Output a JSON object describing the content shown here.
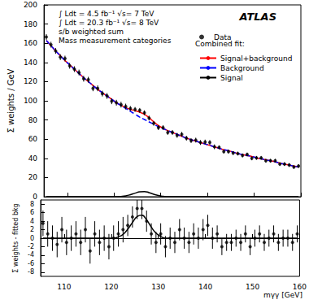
{
  "chart_data": [
    {
      "type": "scatter",
      "title": "ATLAS",
      "annotations": [
        "∫ Ldt = 4.5 fb⁻¹ √s= 7 TeV",
        "∫ Ldt = 20.3 fb⁻¹ √s= 8 TeV",
        "s/b weighted sum",
        "Mass measurement categories"
      ],
      "ylabel": "Σ weights / GeV",
      "legend": "top right",
      "legend_title": "Combined fit:",
      "grid": false,
      "tick_labels": "y",
      "xlim": [
        105,
        160
      ],
      "xticks": [
        110,
        120,
        130,
        140,
        150,
        160
      ],
      "ylim": [
        0,
        200
      ],
      "yticks": [
        0,
        20,
        40,
        60,
        80,
        100,
        120,
        140,
        160,
        180,
        200
      ],
      "x": [
        105.5,
        106.5,
        107.5,
        108.5,
        109.5,
        110.5,
        111.5,
        112.5,
        113.5,
        114.5,
        115.5,
        116.5,
        117.5,
        118.5,
        119.5,
        120.5,
        121.5,
        122.5,
        123.5,
        124.5,
        125.5,
        126.5,
        127.5,
        128.5,
        129.5,
        130.5,
        131.5,
        132.5,
        133.5,
        134.5,
        135.5,
        136.5,
        137.5,
        138.5,
        139.5,
        140.5,
        141.5,
        142.5,
        143.5,
        144.5,
        145.5,
        146.5,
        147.5,
        148.5,
        149.5,
        150.5,
        151.5,
        152.5,
        153.5,
        154.5,
        155.5,
        156.5,
        157.5,
        158.5,
        159.5
      ],
      "series": [
        {
          "name": "Data",
          "type": "scatter",
          "color": "#000000",
          "marker": "circle",
          "values": [
            166.5,
            158.5,
            152,
            145.5,
            144,
            136.5,
            133,
            129.5,
            123,
            122,
            113,
            113,
            107.5,
            105,
            99.5,
            98,
            96,
            94,
            92,
            91,
            90,
            87.5,
            82,
            76.5,
            72,
            72,
            67,
            67,
            64,
            65,
            61,
            58.5,
            59,
            56.5,
            57,
            56.5,
            52,
            51.5,
            47,
            47,
            45.5,
            45,
            43,
            44,
            40,
            40.5,
            40.5,
            37.5,
            37.5,
            37.5,
            34,
            34,
            33,
            31,
            32
          ],
          "errors": [
            3,
            3,
            3,
            3,
            3,
            3,
            3,
            3,
            3,
            3,
            3,
            3,
            3,
            3,
            3,
            3,
            3,
            3,
            2.5,
            2.5,
            2.5,
            2.5,
            2.5,
            2.5,
            2.5,
            2.5,
            2.5,
            2.5,
            2.5,
            2.5,
            2.5,
            2.5,
            2.5,
            2.5,
            2.5,
            2.5,
            2.5,
            2,
            2,
            2,
            2,
            2,
            2,
            2,
            2,
            2,
            2,
            2,
            2,
            2,
            2,
            2,
            2,
            2,
            2
          ]
        },
        {
          "name": "Signal+background",
          "type": "line",
          "color": "#ff0000",
          "line_style": "solid",
          "values": [
            163,
            157.5,
            152,
            147,
            142,
            137.5,
            133,
            128.5,
            124,
            120,
            116,
            112,
            108.5,
            105,
            101.5,
            98,
            95.3,
            92.9,
            91.1,
            89.7,
            88.1,
            85.9,
            82.3,
            78.1,
            74.2,
            71.4,
            69,
            67,
            65,
            63,
            61,
            59.5,
            58,
            56.5,
            55,
            53.5,
            52,
            50.5,
            49,
            48,
            46.5,
            45,
            44,
            43,
            42,
            40.5,
            39.5,
            38.5,
            37.5,
            36.5,
            35,
            34,
            33,
            32,
            31
          ]
        },
        {
          "name": "Background",
          "type": "line",
          "color": "#0000ff",
          "line_style": "dashed",
          "values": [
            163,
            157.5,
            152,
            147,
            142,
            137.5,
            133,
            128.5,
            124,
            120,
            116,
            112,
            108.5,
            105,
            101.5,
            98,
            95,
            92,
            89,
            86,
            83,
            80.5,
            78,
            75.5,
            73,
            71,
            69,
            67,
            65,
            63,
            61,
            59.5,
            58,
            56.5,
            55,
            53.5,
            52,
            50.5,
            49,
            48,
            46.5,
            45,
            44,
            43,
            42,
            40.5,
            39.5,
            38.5,
            37.5,
            36.5,
            35,
            34,
            33,
            32,
            31
          ]
        },
        {
          "name": "Signal",
          "type": "line",
          "color": "#000000",
          "line_style": "solid",
          "values": [
            0,
            0,
            0,
            0,
            0,
            0,
            0,
            0,
            0,
            0,
            0,
            0,
            0,
            0,
            0,
            0,
            0.3,
            0.9,
            2.1,
            3.7,
            5.1,
            5.4,
            4.3,
            2.6,
            1.2,
            0.4,
            0,
            0,
            0,
            0,
            0,
            0,
            0,
            0,
            0,
            0,
            0,
            0,
            0,
            0,
            0,
            0,
            0,
            0,
            0,
            0,
            0,
            0,
            0,
            0,
            0,
            0,
            0,
            0,
            0
          ]
        }
      ]
    },
    {
      "type": "scatter",
      "ylabel": "Σ weights - fitted bkg",
      "xlabel": "mγγ [GeV]",
      "grid": false,
      "xlim": [
        105,
        160
      ],
      "xticks": [
        110,
        120,
        130,
        140,
        150,
        160
      ],
      "ylim": [
        -9,
        9
      ],
      "yticks": [
        -8,
        -6,
        -4,
        -2,
        0,
        2,
        4,
        6,
        8
      ],
      "x": [
        105.5,
        106.5,
        107.5,
        108.5,
        109.5,
        110.5,
        111.5,
        112.5,
        113.5,
        114.5,
        115.5,
        116.5,
        117.5,
        118.5,
        119.5,
        120.5,
        121.5,
        122.5,
        123.5,
        124.5,
        125.5,
        126.5,
        127.5,
        128.5,
        129.5,
        130.5,
        131.5,
        132.5,
        133.5,
        134.5,
        135.5,
        136.5,
        137.5,
        138.5,
        139.5,
        140.5,
        141.5,
        142.5,
        143.5,
        144.5,
        145.5,
        146.5,
        147.5,
        148.5,
        149.5,
        150.5,
        151.5,
        152.5,
        153.5,
        154.5,
        155.5,
        156.5,
        157.5,
        158.5,
        159.5
      ],
      "series": [
        {
          "type": "scatter",
          "color": "#000000",
          "marker": "circle",
          "values": [
            3.5,
            1,
            0,
            -1.5,
            2,
            -1,
            0,
            1,
            -1,
            2,
            -3,
            1,
            -1,
            0,
            -2,
            0,
            1,
            2,
            3,
            5,
            7,
            7,
            4,
            1,
            -1,
            1,
            -2,
            0,
            -1,
            2,
            0,
            -1,
            1,
            0,
            2,
            3,
            0,
            1,
            -2,
            -1,
            -1,
            0,
            -1,
            1,
            -2,
            0,
            1,
            -1,
            0,
            1,
            -1,
            0,
            0,
            -1,
            1
          ],
          "errors": [
            3,
            3,
            3,
            3,
            3,
            3,
            3,
            3,
            3,
            3,
            3,
            3,
            3,
            3,
            3,
            3,
            3,
            3,
            2.5,
            2.5,
            2.5,
            2.5,
            2.5,
            2.5,
            2.5,
            2.5,
            2.5,
            2.5,
            2.5,
            2.5,
            2.5,
            2.5,
            2.5,
            2.5,
            2.5,
            2.5,
            2.5,
            2,
            2,
            2,
            2,
            2,
            2,
            2,
            2,
            2,
            2,
            2,
            2,
            2,
            2,
            2,
            2,
            2,
            2
          ]
        },
        {
          "type": "line",
          "color": "#000000",
          "line_style": "solid",
          "values": [
            0,
            0,
            0,
            0,
            0,
            0,
            0,
            0,
            0,
            0,
            0,
            0,
            0,
            0,
            0,
            0,
            0.3,
            0.9,
            2.1,
            3.7,
            5.1,
            5.4,
            4.3,
            2.6,
            1.2,
            0.4,
            0,
            0,
            0,
            0,
            0,
            0,
            0,
            0,
            0,
            0,
            0,
            0,
            0,
            0,
            0,
            0,
            0,
            0,
            0,
            0,
            0,
            0,
            0,
            0,
            0,
            0,
            0,
            0,
            0
          ]
        }
      ]
    }
  ]
}
